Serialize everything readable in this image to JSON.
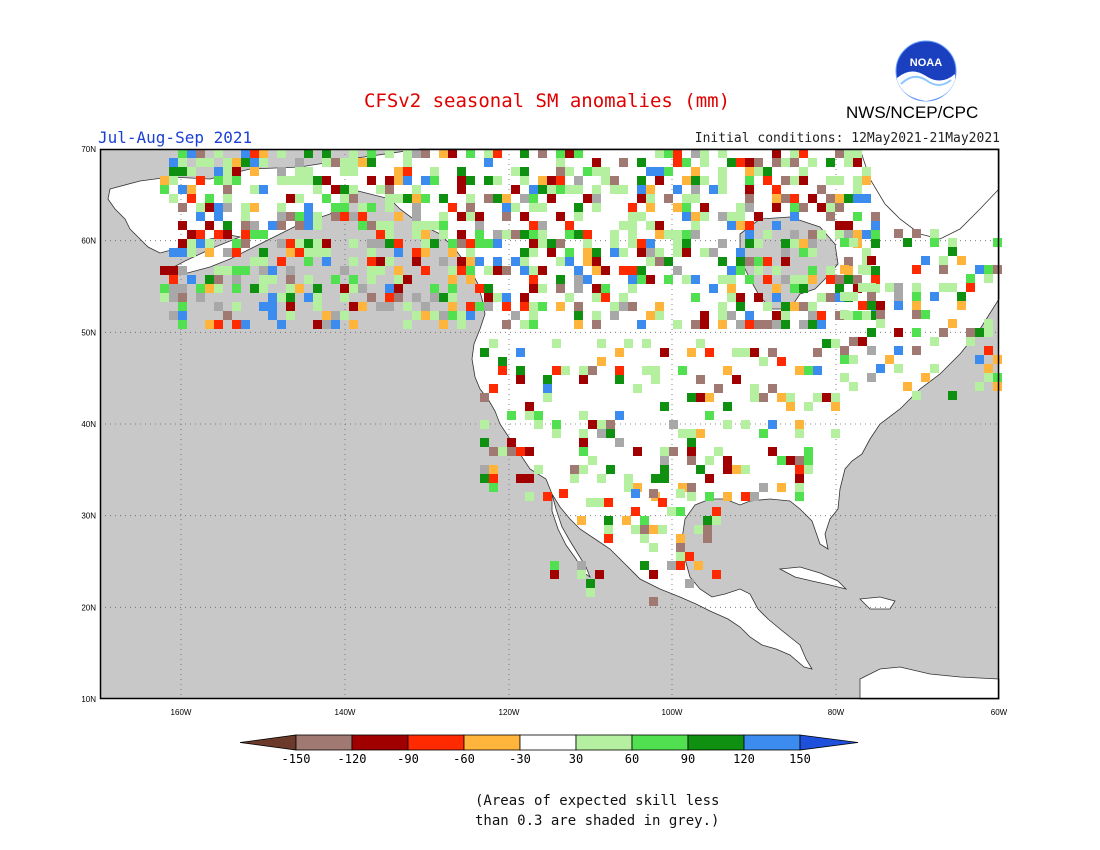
{
  "title": "CFSv2 seasonal SM anomalies (mm)",
  "period": "Jul-Aug-Sep 2021",
  "initial_conditions": "Initial conditions: 12May2021-21May2021",
  "agency": "NWS/NCEP/CPC",
  "logo_text": "NOAA",
  "map": {
    "lat_labels": [
      "70N",
      "60N",
      "50N",
      "40N",
      "30N",
      "20N",
      "10N"
    ],
    "lon_labels": [
      "160W",
      "140W",
      "120W",
      "100W",
      "80W",
      "60W"
    ],
    "colors": {
      "ocean": "#c8c8c8",
      "land": "#ffffff",
      "grid": "#666666"
    }
  },
  "legend": {
    "ticks": [
      "-150",
      "-120",
      "-90",
      "-60",
      "-30",
      "30",
      "60",
      "90",
      "120",
      "150"
    ],
    "colors": [
      "#6b3a2a",
      "#a07a72",
      "#a00000",
      "#ff2a00",
      "#ffb43c",
      "#ffffff",
      "#b4f0a0",
      "#50e050",
      "#109010",
      "#3c8cf0",
      "#1e50dc"
    ]
  },
  "skill_note": [
    "(Areas of expected skill less",
    "than 0.3 are shaded in grey.)"
  ]
}
